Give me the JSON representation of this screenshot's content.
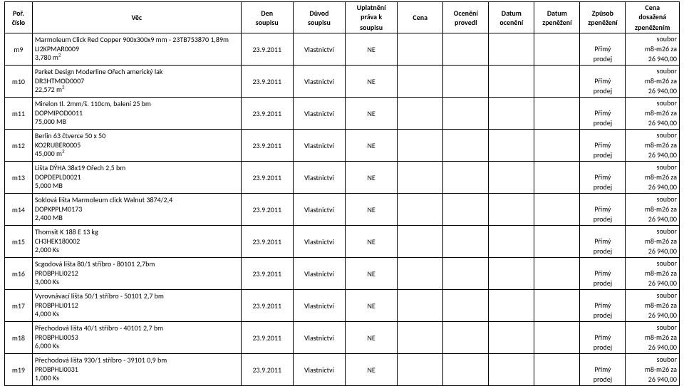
{
  "header": {
    "por1": "Poř.",
    "por2": "číslo",
    "vec": "Věc",
    "den1": "Den",
    "den2": "soupisu",
    "duvod1": "Důvod",
    "duvod2": "soupisu",
    "upl1": "Uplatnění",
    "upl2": "práva k",
    "upl3": "soupisu",
    "cena": "Cena",
    "oc1": "Ocenění",
    "oc2": "provedl",
    "doc1": "Datum",
    "doc2": "ocenění",
    "dzp1": "Datum",
    "dzp2": "zpeněžení",
    "zp1": "Způsob",
    "zp2": "zpeněžení",
    "cd1": "Cena",
    "cd2": "dosažená",
    "cd3": "zpeněžením"
  },
  "defaults": {
    "den": "23.9.2011",
    "duvod": "Vlastnictví",
    "upl": "NE",
    "zp_line1": "Přímý",
    "zp_line2": "prodej",
    "cd_line1": "soubor",
    "cd_line2": "m8-m26 za",
    "cd_line3": "26 940,00"
  },
  "rows": [
    {
      "por": "m9",
      "l1": "Marmoleum Click Red Copper  900x300x9 mm - 23TB753870  1,89m",
      "l2": "LI2KPMAR0009",
      "l3": "3,780 m²"
    },
    {
      "por": "m10",
      "l1": "Parket Design Moderline Ořech americký lak",
      "l2": "DR3HTMOD0007",
      "l3": "22,572 m²"
    },
    {
      "por": "m11",
      "l1": "Mirelon tl. 2mm/š. 110cm, balení 25 bm",
      "l2": "DOPMIPOD0011",
      "l3": "75,000 MB"
    },
    {
      "por": "m12",
      "l1": "Berlin 63 čtverce 50 x 50",
      "l2": "KO2RUBER0005",
      "l3": "45,000 m²"
    },
    {
      "por": "m13",
      "l1": "Lišta DÝHA 38x19 Ořech 2,5 bm",
      "l2": "DOPDEPLD0021",
      "l3": "5,000 MB"
    },
    {
      "por": "m14",
      "l1": "Soklová lišta Marmoleum click Walnut 3874/2,4",
      "l2": "DOPKPPLM0173",
      "l3": "2,400 MB"
    },
    {
      "por": "m15",
      "l1": "Thomsit K 188 E 13 kg",
      "l2": "CH3HEK180002",
      "l3": "2,000 Ks"
    },
    {
      "por": "m16",
      "l1": "Scgodová lišta 80/1 stříbro - 80101  2,7bm",
      "l2": "PROBPHLI0212",
      "l3": "3,000 Ks"
    },
    {
      "por": "m17",
      "l1": "Vyrovnávací lišta 50/1 stříbro - 50101  2,7 bm",
      "l2": "PROBPHLI0112",
      "l3": "4,000 Ks"
    },
    {
      "por": "m18",
      "l1": "Přechodová lišta 40/1 stříbro - 40101  2,7 bm",
      "l2": "PROBPHLI0053",
      "l3": "6,000 Ks"
    },
    {
      "por": "m19",
      "l1": "Přechodová lišta 930/1 stříbro - 39101  0,9 bm",
      "l2": "PROBPHLI0031",
      "l3": "1,000 Ks"
    }
  ]
}
